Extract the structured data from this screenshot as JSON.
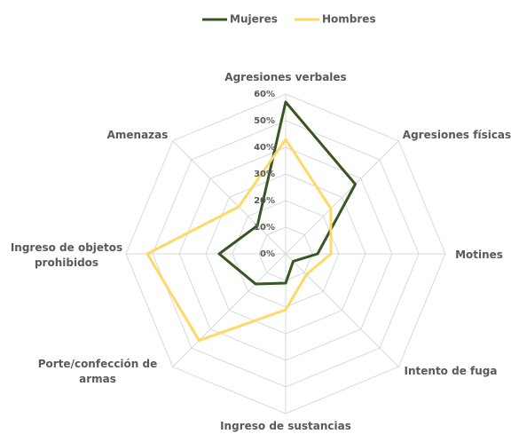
{
  "chart_data": {
    "type": "radar",
    "categories": [
      [
        "Agresiones verbales"
      ],
      [
        "Agresiones físicas"
      ],
      [
        "Motines"
      ],
      [
        "Intento de fuga"
      ],
      [
        "Ingreso de sustancias"
      ],
      [
        "Porte/confección de",
        "armas"
      ],
      [
        "Ingreso de objetos",
        "prohibidos"
      ],
      [
        "Amenazas"
      ]
    ],
    "series": [
      {
        "name": "Mujeres",
        "color": "#375623",
        "values": [
          57,
          37,
          12,
          4,
          11,
          16,
          25,
          15
        ]
      },
      {
        "name": "Hombres",
        "color": "#ffd966",
        "values": [
          43,
          24,
          17,
          11,
          21,
          46,
          52,
          25
        ]
      }
    ],
    "ylim": [
      0,
      60
    ],
    "yticks": [
      {
        "value": 0,
        "label": "0%"
      },
      {
        "value": 10,
        "label": "10%"
      },
      {
        "value": 20,
        "label": "20%"
      },
      {
        "value": 30,
        "label": "30%"
      },
      {
        "value": 40,
        "label": "40%"
      },
      {
        "value": 50,
        "label": "50%"
      },
      {
        "value": 60,
        "label": "60%"
      }
    ],
    "grid": true,
    "legend": "top"
  }
}
